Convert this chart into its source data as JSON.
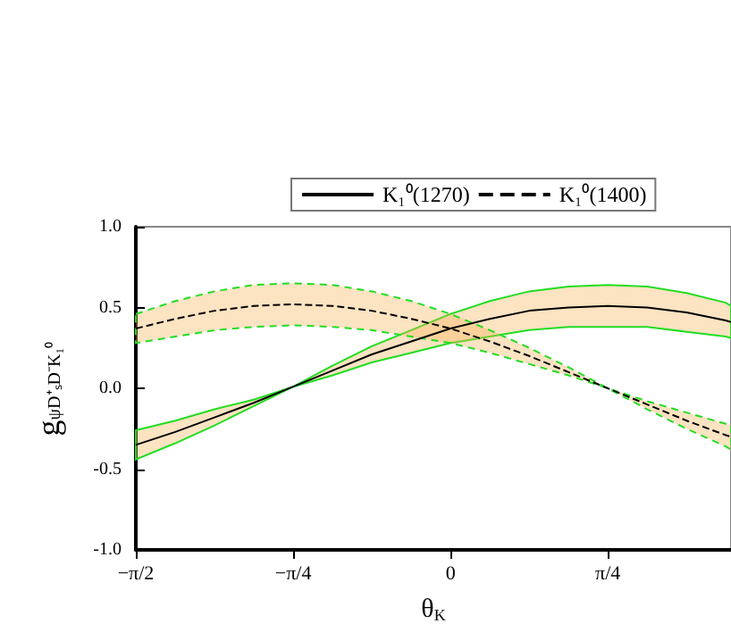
{
  "chart_data": {
    "type": "line",
    "xlabel": "θ$_{K}$",
    "ylabel": "g$_{ψD⁺ₛD⁻K₁⁰}$",
    "x": [
      -1.5708,
      -1.374,
      -1.178,
      -0.982,
      -0.785,
      -0.589,
      -0.393,
      -0.196,
      0,
      0.196,
      0.393,
      0.589,
      0.785,
      0.982,
      1.178,
      1.374,
      1.4
    ],
    "series": [
      {
        "name": "K₁⁰(1270)",
        "color": "#000000",
        "line_style": "solid",
        "values": [
          -0.35,
          -0.27,
          -0.18,
          -0.09,
          0.01,
          0.11,
          0.21,
          0.29,
          0.37,
          0.43,
          0.48,
          0.5,
          0.51,
          0.5,
          0.47,
          0.42,
          0.41
        ],
        "upper": [
          -0.26,
          -0.2,
          -0.13,
          -0.07,
          0.01,
          0.14,
          0.26,
          0.36,
          0.46,
          0.54,
          0.6,
          0.63,
          0.64,
          0.63,
          0.59,
          0.53,
          0.51
        ],
        "lower": [
          -0.44,
          -0.34,
          -0.23,
          -0.11,
          0.01,
          0.08,
          0.16,
          0.22,
          0.28,
          0.32,
          0.36,
          0.38,
          0.38,
          0.38,
          0.35,
          0.32,
          0.31
        ]
      },
      {
        "name": "K₁⁰(1400)",
        "color": "#000000",
        "line_style": "dashed",
        "values": [
          0.37,
          0.43,
          0.48,
          0.51,
          0.52,
          0.51,
          0.48,
          0.43,
          0.37,
          0.29,
          0.2,
          0.1,
          0.0,
          -0.1,
          -0.2,
          -0.29,
          -0.3
        ],
        "upper": [
          0.46,
          0.54,
          0.6,
          0.64,
          0.65,
          0.64,
          0.6,
          0.54,
          0.46,
          0.36,
          0.25,
          0.13,
          0.0,
          -0.08,
          -0.15,
          -0.22,
          -0.23
        ],
        "lower": [
          0.28,
          0.32,
          0.36,
          0.38,
          0.39,
          0.38,
          0.36,
          0.32,
          0.28,
          0.22,
          0.15,
          0.08,
          0.0,
          -0.13,
          -0.25,
          -0.36,
          -0.38
        ]
      }
    ],
    "xlim": [
      -1.5708,
      1.4
    ],
    "xticks": [
      {
        "value": -1.5708,
        "label": "−π/2"
      },
      {
        "value": -0.7854,
        "label": "−π/4"
      },
      0,
      {
        "value": 0.7854,
        "label": "π/4"
      }
    ],
    "ylim": [
      -1.0,
      1.0
    ],
    "yticks": [
      {
        "value": -1.0,
        "label": "-1.0"
      },
      {
        "value": -0.5,
        "label": "-0.5"
      },
      {
        "value": 0.0,
        "label": "0.0"
      },
      {
        "value": 0.5,
        "label": "0.5"
      },
      {
        "value": 1.0,
        "label": "1.0"
      }
    ],
    "grid": false,
    "legend": "top",
    "marker": "none"
  }
}
